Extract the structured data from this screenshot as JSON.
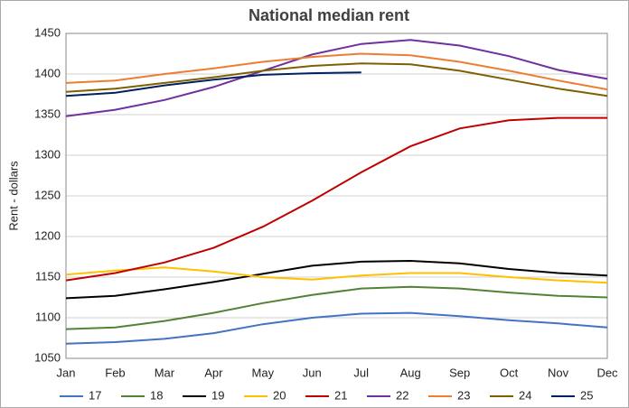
{
  "chart_data": {
    "type": "line",
    "title": "National median rent",
    "ylabel": "Rent - dollars",
    "categories": [
      "Jan",
      "Feb",
      "Mar",
      "Apr",
      "May",
      "Jun",
      "Jul",
      "Aug",
      "Sep",
      "Oct",
      "Nov",
      "Dec"
    ],
    "ylim": [
      1050,
      1450
    ],
    "yticks": [
      1050,
      1100,
      1150,
      1200,
      1250,
      1300,
      1350,
      1400,
      1450
    ],
    "grid": true,
    "legend": "bottom",
    "series": [
      {
        "name": "17",
        "color": "#4472c4",
        "values": [
          1068,
          1070,
          1074,
          1081,
          1092,
          1100,
          1105,
          1106,
          1102,
          1097,
          1093,
          1088
        ]
      },
      {
        "name": "18",
        "color": "#548235",
        "values": [
          1086,
          1088,
          1096,
          1106,
          1118,
          1128,
          1136,
          1138,
          1136,
          1131,
          1127,
          1125
        ]
      },
      {
        "name": "19",
        "color": "#000000",
        "values": [
          1124,
          1127,
          1135,
          1144,
          1154,
          1164,
          1169,
          1170,
          1167,
          1160,
          1155,
          1152
        ]
      },
      {
        "name": "20",
        "color": "#ffc000",
        "values": [
          1153,
          1158,
          1162,
          1157,
          1150,
          1147,
          1152,
          1155,
          1155,
          1150,
          1146,
          1143
        ]
      },
      {
        "name": "21",
        "color": "#c00000",
        "values": [
          1146,
          1155,
          1168,
          1186,
          1212,
          1244,
          1279,
          1311,
          1333,
          1343,
          1346,
          1346
        ]
      },
      {
        "name": "22",
        "color": "#7030a0",
        "values": [
          1348,
          1356,
          1368,
          1384,
          1404,
          1424,
          1437,
          1442,
          1435,
          1422,
          1405,
          1394
        ]
      },
      {
        "name": "23",
        "color": "#ed7d31",
        "values": [
          1389,
          1392,
          1400,
          1407,
          1415,
          1421,
          1425,
          1423,
          1415,
          1404,
          1392,
          1381
        ]
      },
      {
        "name": "24",
        "color": "#7f6000",
        "values": [
          1378,
          1382,
          1389,
          1396,
          1404,
          1410,
          1413,
          1412,
          1404,
          1393,
          1382,
          1373
        ]
      },
      {
        "name": "25",
        "color": "#002060",
        "values": [
          1373,
          1377,
          1386,
          1393,
          1399,
          1401,
          1402,
          null,
          null,
          null,
          null,
          null
        ]
      }
    ]
  }
}
